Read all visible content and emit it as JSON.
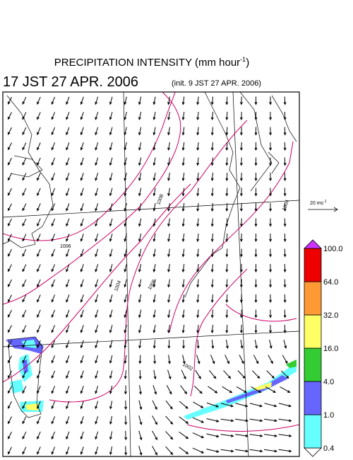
{
  "header": {
    "title": "PRECIPITATION INTENSITY (mm hour",
    "title_sup": "-1",
    "title_end": ")",
    "time": "17 JST 27 APR. 2006",
    "init": "(init. 9 JST 27 APR. 2006)"
  },
  "scale": {
    "label": "20 ms",
    "label_sup": "-1"
  },
  "colorbar": {
    "labels": [
      "0.4",
      "1.0",
      "4.0",
      "16.0",
      "32.0",
      "64.0",
      "100.0"
    ],
    "colors": [
      "#ffffff",
      "#66ffff",
      "#6666ff",
      "#33cc33",
      "#ffff66",
      "#ff9933",
      "#ee0000",
      "#cc33ff"
    ]
  },
  "isobars": {
    "labels": [
      "1006",
      "1008",
      "1004",
      "1004",
      "1006",
      "1002"
    ]
  }
}
